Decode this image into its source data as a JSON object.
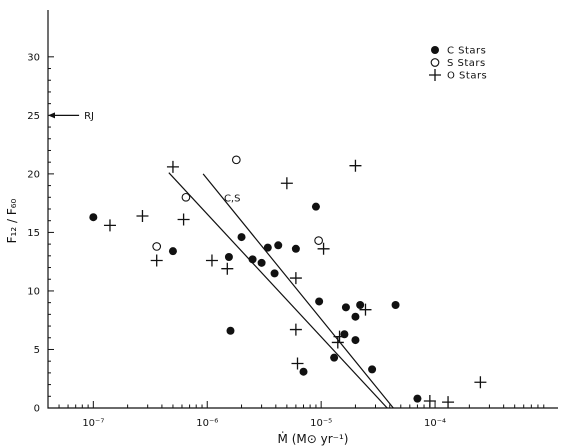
{
  "chart_data": {
    "type": "scatter",
    "xlabel": "Ṁ (M⊙ yr⁻¹)",
    "ylabel": "F₁₂ / F₆₀",
    "xscale": "log",
    "xlim": [
      4e-08,
      0.0012
    ],
    "ylim": [
      0,
      34
    ],
    "x_ticks": [
      1e-07,
      1e-06,
      1e-05,
      0.0001
    ],
    "x_tick_labels": [
      "10⁻⁷",
      "10⁻⁶",
      "10⁻⁵",
      "10⁻⁴"
    ],
    "y_ticks": [
      0,
      5,
      10,
      15,
      20,
      25,
      30
    ],
    "y_tick_labels": [
      "0",
      "5",
      "10",
      "15",
      "20",
      "25",
      "30"
    ],
    "grid": false,
    "legend_position": "top-right",
    "series": [
      {
        "name": "C Stars",
        "marker": "filled-circle",
        "points": [
          [
            1e-07,
            16.3
          ],
          [
            5e-07,
            13.4
          ],
          [
            1.55e-06,
            12.9
          ],
          [
            1.6e-06,
            6.6
          ],
          [
            2e-06,
            14.6
          ],
          [
            2.5e-06,
            12.7
          ],
          [
            3e-06,
            12.4
          ],
          [
            3.4e-06,
            13.7
          ],
          [
            3.9e-06,
            11.5
          ],
          [
            4.2e-06,
            13.9
          ],
          [
            6e-06,
            13.6
          ],
          [
            7e-06,
            3.1
          ],
          [
            9e-06,
            17.2
          ],
          [
            9.6e-06,
            9.1
          ],
          [
            1.3e-05,
            4.3
          ],
          [
            1.6e-05,
            6.3
          ],
          [
            1.65e-05,
            8.6
          ],
          [
            2e-05,
            7.8
          ],
          [
            2e-05,
            5.8
          ],
          [
            2.2e-05,
            8.8
          ],
          [
            2.8e-05,
            3.3
          ],
          [
            4.5e-05,
            8.8
          ],
          [
            7e-05,
            0.8
          ]
        ]
      },
      {
        "name": "S Stars",
        "marker": "open-circle",
        "points": [
          [
            3.6e-07,
            13.8
          ],
          [
            6.5e-07,
            18.0
          ],
          [
            1.8e-06,
            21.2
          ],
          [
            9.5e-06,
            14.3
          ]
        ]
      },
      {
        "name": "O Stars",
        "marker": "plus",
        "points": [
          [
            1.4e-07,
            15.6
          ],
          [
            2.7e-07,
            16.4
          ],
          [
            3.6e-07,
            12.6
          ],
          [
            5e-07,
            20.6
          ],
          [
            6.2e-07,
            16.1
          ],
          [
            1.1e-06,
            12.6
          ],
          [
            1.5e-06,
            11.9
          ],
          [
            5e-06,
            19.2
          ],
          [
            6e-06,
            11.1
          ],
          [
            6e-06,
            6.7
          ],
          [
            6.2e-06,
            3.8
          ],
          [
            1.05e-05,
            13.6
          ],
          [
            1.4e-05,
            5.6
          ],
          [
            1.45e-05,
            6.1
          ],
          [
            2e-05,
            20.7
          ],
          [
            2.45e-05,
            8.4
          ],
          [
            9e-05,
            0.6
          ],
          [
            0.00013,
            0.5
          ],
          [
            0.00025,
            2.2
          ]
        ]
      }
    ],
    "fit_lines": [
      {
        "label": "",
        "from": [
          4.6e-07,
          20.1
        ],
        "to": [
          3.8e-05,
          0
        ]
      },
      {
        "label": "C,S",
        "from": [
          9.2e-07,
          20.0
        ],
        "to": [
          4.3e-05,
          0
        ]
      }
    ],
    "annotations": [
      {
        "text": "C,S",
        "at": [
          1.1e-06,
          18.0
        ]
      },
      {
        "text": "RJ",
        "arrow_to": [
          4e-08,
          25.0
        ],
        "from": [
          7.5e-08,
          25.0
        ]
      }
    ]
  }
}
